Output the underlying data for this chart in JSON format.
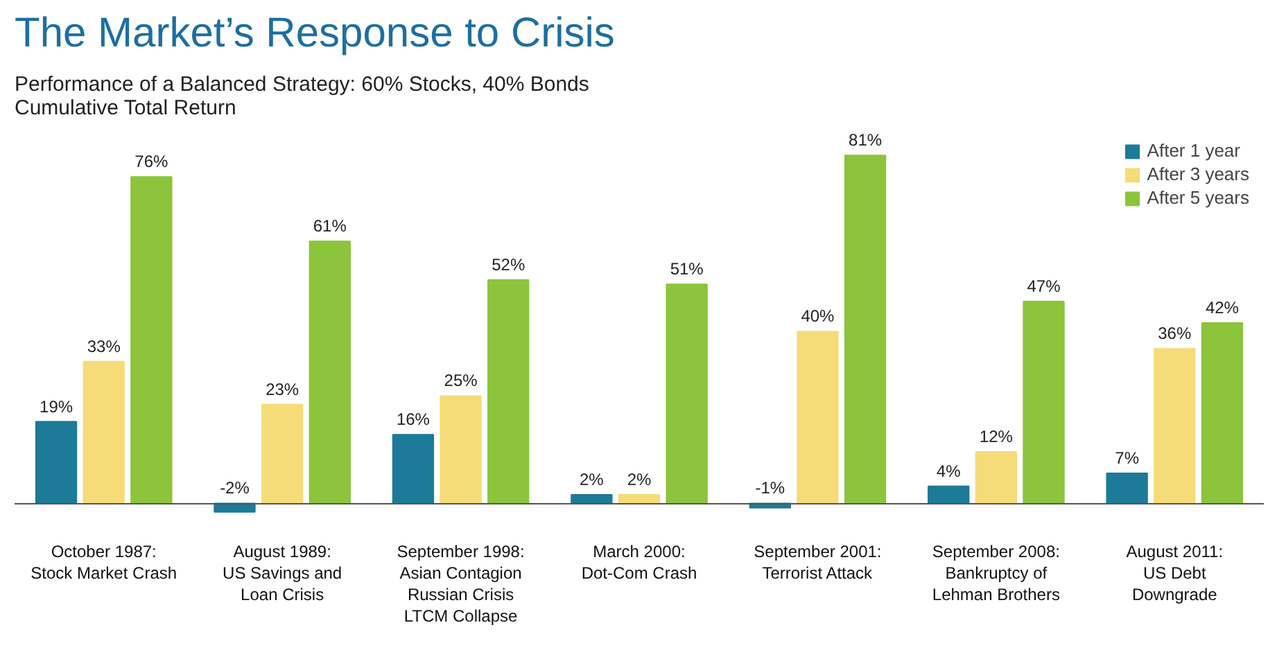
{
  "chart_data": {
    "type": "bar",
    "title": "The Market’s Response to Crisis",
    "subtitle": "Performance of a Balanced Strategy: 60% Stocks, 40% Bonds\nCumulative Total Return",
    "categories": [
      "October 1987:\nStock Market Crash",
      "August 1989:\nUS Savings and\nLoan Crisis",
      "September 1998:\nAsian Contagion\nRussian Crisis\nLTCM Collapse",
      "March 2000:\nDot-Com Crash",
      "September 2001:\nTerrorist Attack",
      "September 2008:\nBankruptcy of\nLehman Brothers",
      "August 2011:\nUS Debt\nDowngrade"
    ],
    "series": [
      {
        "name": "After 1 year",
        "color": "#1d7a99",
        "values": [
          19,
          -2,
          16,
          2,
          -1,
          4,
          7
        ],
        "value_labels": [
          "19%",
          "-2%",
          "16%",
          "2%",
          "-1%",
          "4%",
          "7%"
        ]
      },
      {
        "name": "After 3 years",
        "color": "#f5dc78",
        "values": [
          33,
          23,
          25,
          2,
          40,
          12,
          36
        ],
        "value_labels": [
          "33%",
          "23%",
          "25%",
          "2%",
          "40%",
          "12%",
          "36%"
        ]
      },
      {
        "name": "After 5 years",
        "color": "#8cc43c",
        "values": [
          76,
          61,
          52,
          51,
          81,
          47,
          42
        ],
        "value_labels": [
          "76%",
          "61%",
          "52%",
          "51%",
          "81%",
          "47%",
          "42%"
        ]
      }
    ],
    "legend": "top right"
  }
}
